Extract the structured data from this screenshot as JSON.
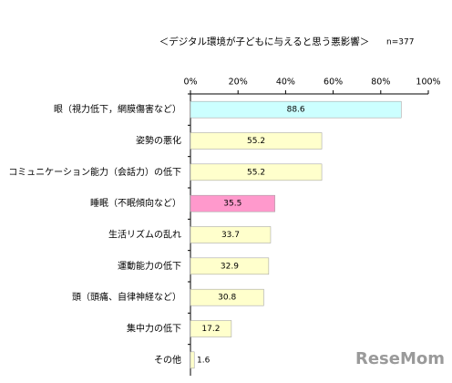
{
  "chart_data": {
    "type": "bar",
    "orientation": "horizontal",
    "title": "＜デジタル環境が子どもに与えると思う悪影響＞",
    "subtitle": "n=377",
    "categories": [
      "眼（視力低下，網膜傷害など）",
      "姿勢の悪化",
      "コミュニケーション能力（会話力）の低下",
      "睡眠（不眠傾向など）",
      "生活リズムの乱れ",
      "運動能力の低下",
      "頭（頭痛、自律神経など）",
      "集中力の低下",
      "その他"
    ],
    "values": [
      88.6,
      55.2,
      55.2,
      35.5,
      33.7,
      32.9,
      30.8,
      17.2,
      1.6
    ],
    "colors": [
      "#ccffff",
      "#ffffcc",
      "#ffffcc",
      "#ff99cc",
      "#ffffcc",
      "#ffffcc",
      "#ffffcc",
      "#ffffcc",
      "#ffffcc"
    ],
    "xlim": [
      0,
      100
    ],
    "xticks": [
      {
        "value": 0,
        "label": "0%"
      },
      {
        "value": 20,
        "label": "20%"
      },
      {
        "value": 40,
        "label": "40%"
      },
      {
        "value": 60,
        "label": "60%"
      },
      {
        "value": 80,
        "label": "80%"
      },
      {
        "value": 100,
        "label": "100%"
      }
    ],
    "watermark": "ReseMom"
  }
}
